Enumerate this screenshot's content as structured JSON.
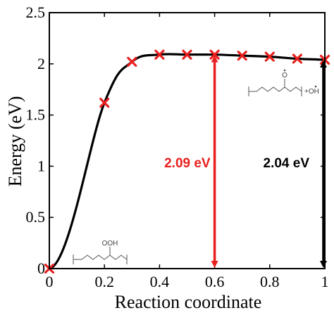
{
  "chart_data": {
    "type": "line",
    "title": "",
    "xlabel": "Reaction coordinate",
    "ylabel": "Energy (eV)",
    "xlim": [
      0,
      1
    ],
    "ylim": [
      0,
      2.5
    ],
    "x_ticks": [
      "0",
      "0.2",
      "0.4",
      "0.6",
      "0.8",
      "1"
    ],
    "y_ticks": [
      "0",
      "0.5",
      "1",
      "1.5",
      "2",
      "2.5"
    ],
    "grid": false,
    "legend": "none",
    "series": [
      {
        "markers": "x",
        "color": "#e8201e",
        "line_color": "#000000",
        "x": [
          0,
          0.2,
          0.3,
          0.4,
          0.5,
          0.6,
          0.7,
          0.8,
          0.9,
          1.0
        ],
        "y": [
          0.0,
          1.62,
          2.02,
          2.09,
          2.09,
          2.09,
          2.08,
          2.07,
          2.05,
          2.04
        ]
      }
    ],
    "annotations": [
      {
        "text": "2.09 eV",
        "color": "#e8201e",
        "arrow_x": 0.6,
        "arrow_from": 0,
        "arrow_to": 2.09
      },
      {
        "text": "2.04 eV",
        "color": "#000000",
        "arrow_x": 1.0,
        "arrow_from": 0,
        "arrow_to": 2.04
      }
    ],
    "structures": [
      {
        "position": "lower-left",
        "group_label": "OOH"
      },
      {
        "position": "upper-right",
        "group_label": "O",
        "product_label": "+OH"
      }
    ]
  }
}
